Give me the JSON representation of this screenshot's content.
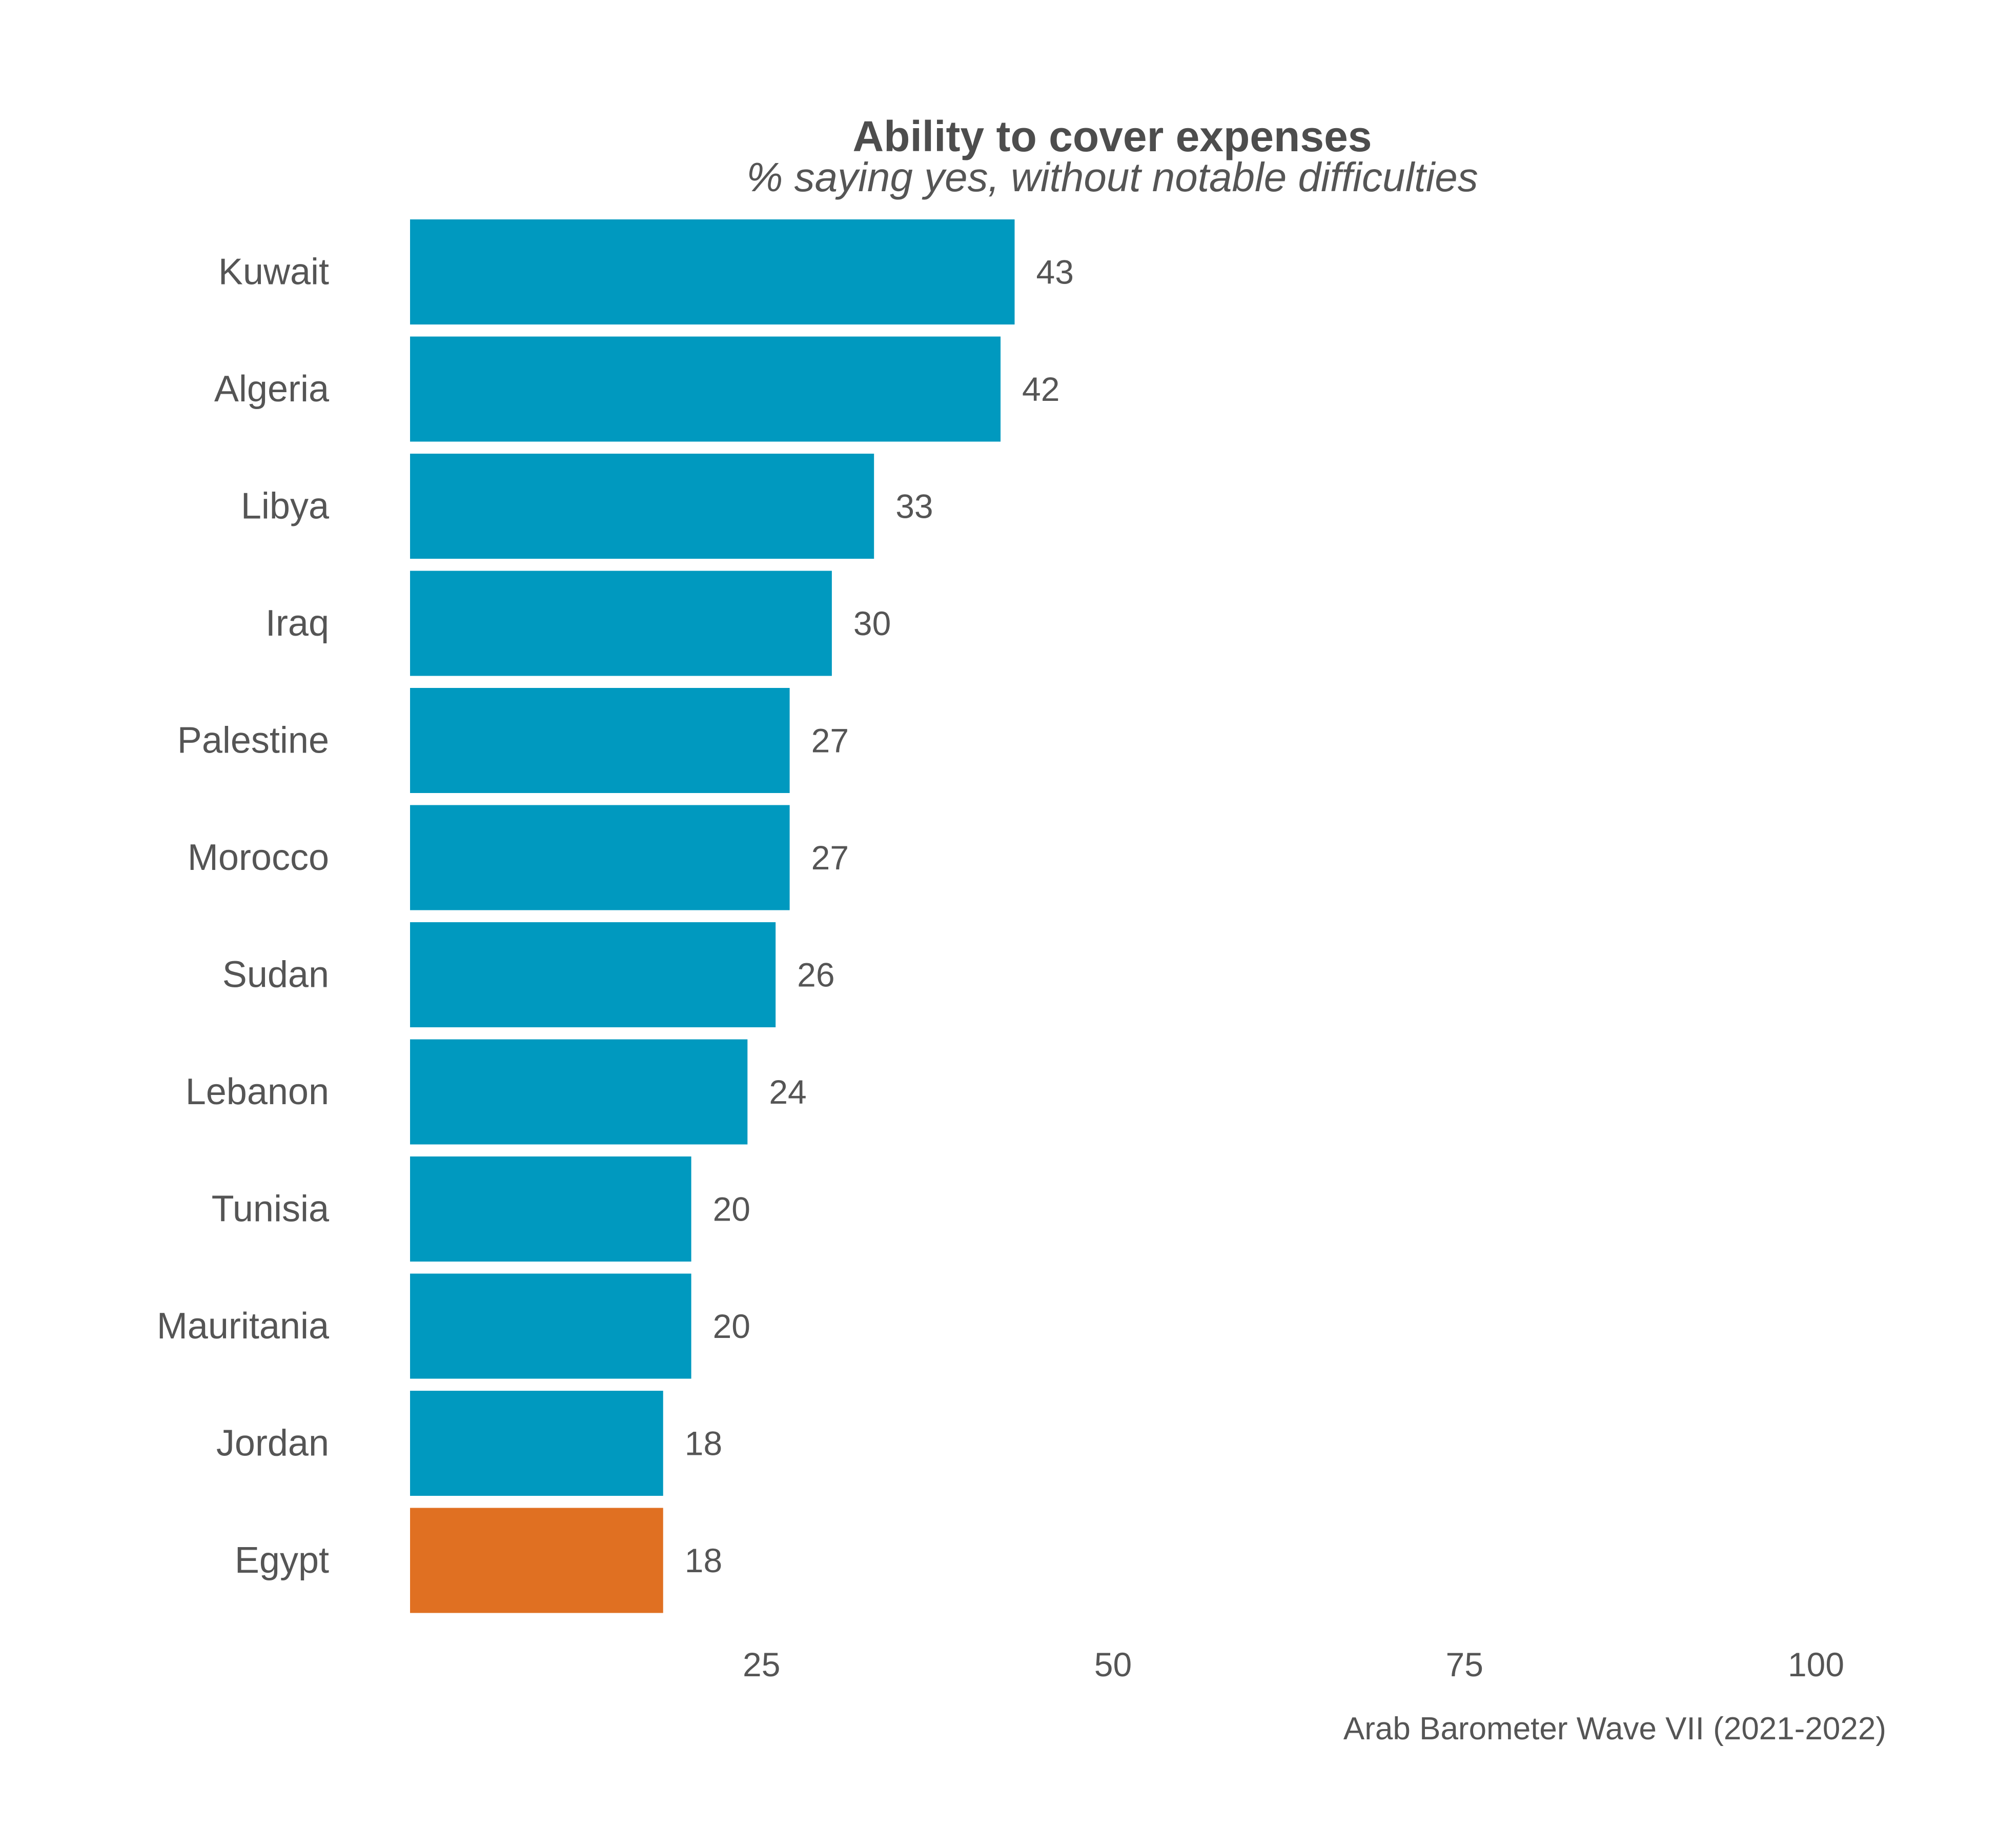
{
  "chart_data": {
    "type": "bar",
    "orientation": "horizontal",
    "title": "Ability to cover expenses",
    "subtitle": "% saying yes, without notable difficulties",
    "caption": "Arab Barometer Wave VII (2021-2022)",
    "categories": [
      "Kuwait",
      "Algeria",
      "Libya",
      "Iraq",
      "Palestine",
      "Morocco",
      "Sudan",
      "Lebanon",
      "Tunisia",
      "Mauritania",
      "Jordan",
      "Egypt"
    ],
    "values": [
      43,
      42,
      33,
      30,
      27,
      27,
      26,
      24,
      20,
      20,
      18,
      18
    ],
    "highlight": "Egypt",
    "xlim": [
      0,
      100
    ],
    "xticks": [
      25,
      50,
      75,
      100
    ],
    "xlabel": "",
    "ylabel": "",
    "grid": false,
    "legend": "none",
    "colors": {
      "bar": "#0099BF",
      "highlight": "#E07022",
      "text": "#555555",
      "title": "#4D4D4D"
    }
  }
}
